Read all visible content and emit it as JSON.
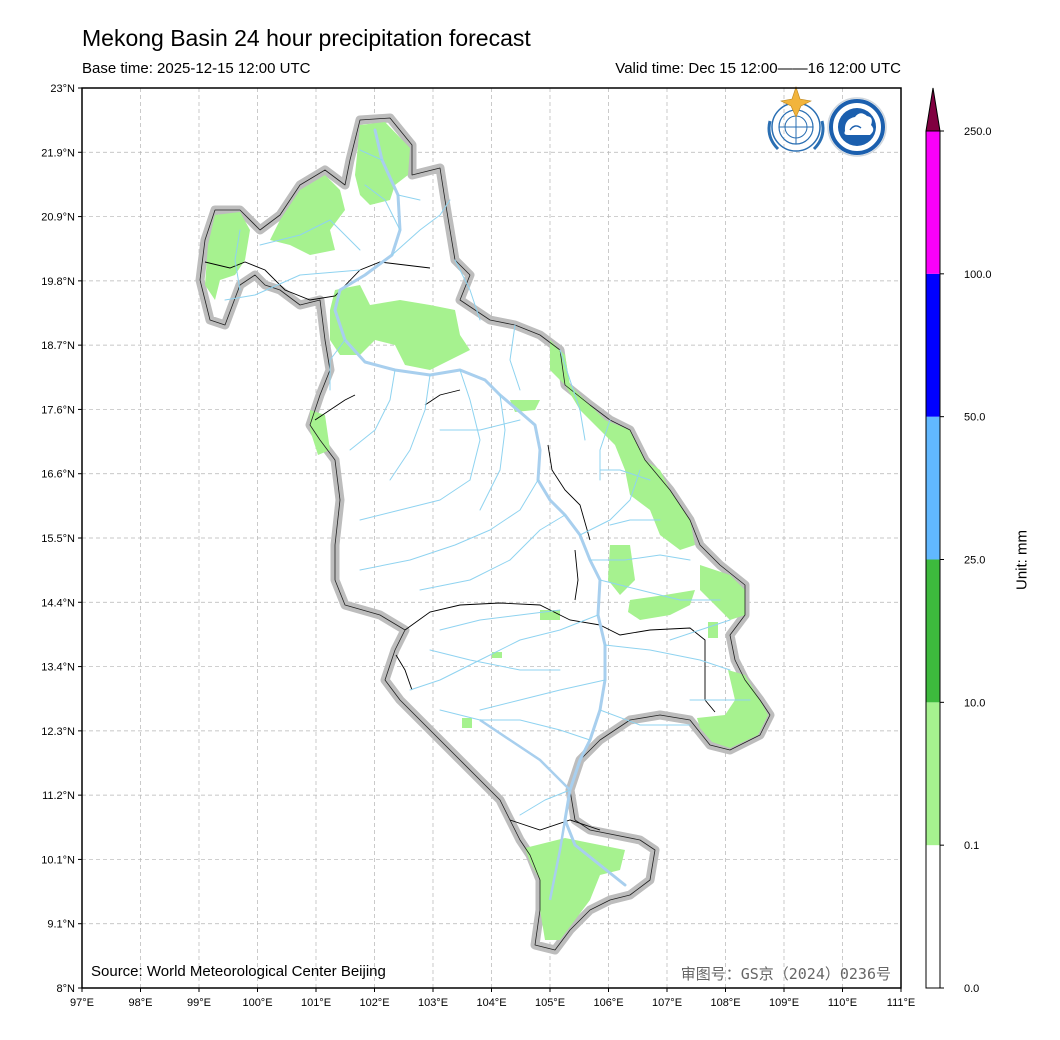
{
  "title": "Mekong Basin 24 hour precipitation forecast",
  "base_time": "Base time: 2025-12-15 12:00 UTC",
  "valid_time": "Valid time: Dec 15 12:00——16 12:00 UTC",
  "source": "Source: World Meteorological Center Beijing",
  "approval_number": "审图号：GS京（2024）0236号",
  "logos": [
    "WMO",
    "CMA"
  ],
  "map": {
    "lon_ticks": [
      "97°E",
      "98°E",
      "99°E",
      "100°E",
      "101°E",
      "102°E",
      "103°E",
      "104°E",
      "105°E",
      "106°E",
      "107°E",
      "108°E",
      "109°E",
      "110°E",
      "111°E"
    ],
    "lat_ticks": [
      "23°N",
      "21.9°N",
      "20.9°N",
      "19.8°N",
      "18.7°N",
      "17.6°N",
      "16.6°N",
      "15.5°N",
      "14.4°N",
      "13.4°N",
      "12.3°N",
      "11.2°N",
      "10.1°N",
      "9.1°N",
      "8°N"
    ],
    "lon_range": [
      97,
      111
    ],
    "lat_range": [
      8,
      23
    ]
  },
  "colorbar": {
    "unit": "Unit: mm",
    "ticks": [
      "0.0",
      "0.1",
      "10.0",
      "25.0",
      "50.0",
      "100.0",
      "250.0"
    ],
    "colors": [
      "#ffffff",
      "#a6f28f",
      "#3dba3d",
      "#61b8ff",
      "#0000ff",
      "#fa00fa",
      "#800040"
    ],
    "bin_labels": [
      "0.0–0.1",
      "0.1–10",
      "10–25",
      "25–50",
      "50–100",
      "100–250",
      ">250"
    ]
  },
  "colors": {
    "precip_light": "#a6f28f",
    "basin_outline": "#bdbdbd",
    "rivers": "#8fd3f0",
    "main_river": "#a8cfee",
    "grid": "#b5b5b5"
  }
}
